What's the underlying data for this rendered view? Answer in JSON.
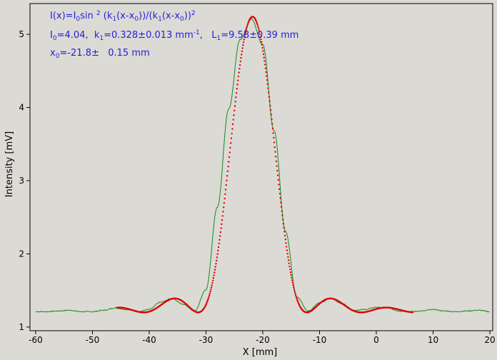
{
  "chart_data": {
    "type": "scatter",
    "xlabel": "X [mm]",
    "ylabel": "Intensity [mV]",
    "xlim": [
      -61,
      20.5
    ],
    "ylim": [
      0.95,
      5.42
    ],
    "xticks": [
      -60,
      -50,
      -40,
      -30,
      -20,
      -10,
      0,
      10,
      20
    ],
    "yticks": [
      1,
      2,
      3,
      4,
      5
    ],
    "grid": false,
    "annotations": {
      "line1": {
        "a": "I(x)=I",
        "a_sub": "0",
        "b": "sin ",
        "b_sup": "2",
        "c": " (k",
        "c_sub": "1",
        "d": "(x-x",
        "d_sub": "0",
        "e": "))/(k",
        "e_sub": "1",
        "f": "(x-x",
        "f_sub": "0",
        "g": "))",
        "g_sup": "2"
      },
      "line2": {
        "a": "I",
        "a_sub": "0",
        "b": "=4.04,  k",
        "b_sub": "1",
        "c": "=0.328±0.013 mm",
        "c_sup": "-1",
        "d": ",   L",
        "d_sub": "1",
        "e": "=9.58±0.39 mm"
      },
      "line3": {
        "a": "x",
        "a_sub": "0",
        "b": "=-21.8±   0.15 mm"
      }
    },
    "series": [
      {
        "kind": "measured",
        "color": "#1a8a1a",
        "x_range": [
          -60,
          20
        ],
        "baseline": 1.2,
        "x": [
          -60,
          -58,
          -56,
          -54,
          -52,
          -50,
          -48,
          -46,
          -44,
          -42,
          -40,
          -38,
          -36,
          -34,
          -32,
          -30,
          -28,
          -26,
          -24,
          -22,
          -20,
          -18,
          -16,
          -14,
          -12,
          -10,
          -8,
          -6,
          -4,
          -2,
          0,
          2,
          4,
          6,
          8,
          10,
          12,
          14,
          16,
          18,
          20
        ],
        "y": [
          1.21,
          1.21,
          1.22,
          1.23,
          1.21,
          1.21,
          1.23,
          1.26,
          1.24,
          1.21,
          1.24,
          1.34,
          1.39,
          1.31,
          1.22,
          1.51,
          2.64,
          3.98,
          4.93,
          5.21,
          4.86,
          3.68,
          2.31,
          1.41,
          1.22,
          1.33,
          1.39,
          1.32,
          1.23,
          1.24,
          1.27,
          1.26,
          1.22,
          1.21,
          1.22,
          1.24,
          1.22,
          1.21,
          1.22,
          1.23,
          1.21
        ]
      },
      {
        "kind": "fit",
        "color": "#e00000",
        "x_range": [
          -45.7,
          6.5
        ],
        "I0": 4.04,
        "k1": 0.328,
        "x0": -21.8,
        "baseline": 1.2
      }
    ]
  }
}
